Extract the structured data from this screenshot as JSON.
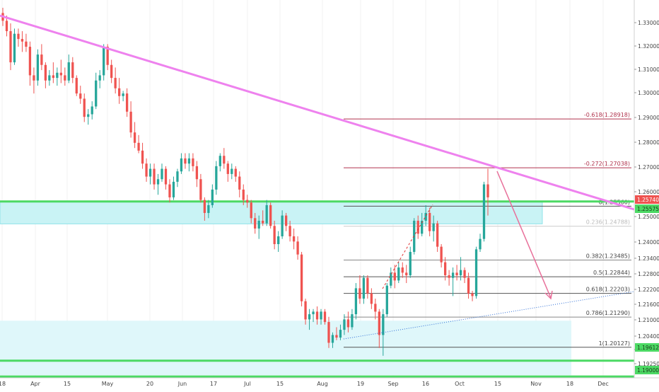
{
  "chart_data": {
    "type": "candlestick",
    "title": "",
    "timeframe": "daily",
    "x_axis_ticks": [
      "18",
      "Apr",
      "15",
      "May",
      "20",
      "Jun",
      "17",
      "Jul",
      "15",
      "Aug",
      "19",
      "Sep",
      "16",
      "Oct",
      "15",
      "Nov",
      "18",
      "Dec"
    ],
    "y_axis_ticks": [
      "1.33000",
      "1.32000",
      "1.31000",
      "1.30000",
      "1.29000",
      "1.28000",
      "1.27000",
      "1.26000",
      "1.25000",
      "1.24000",
      "1.23400",
      "1.22800",
      "1.22200",
      "1.21600",
      "1.21000",
      "1.20400",
      "1.19750",
      "1.19250"
    ],
    "ylim": [
      1.1895,
      1.335
    ],
    "price_labels": {
      "current": {
        "text": "1.25740",
        "value": 1.2574,
        "color": "#ef5350"
      },
      "zone_upper": {
        "text": "1.25575",
        "value": 1.25575,
        "color": "#4cd964"
      },
      "support_1": {
        "text": "1.19612",
        "value": 1.19612,
        "color": "#4cd964"
      },
      "support_2": {
        "text": "1.19000",
        "value": 1.19,
        "color": "#4cd964"
      }
    },
    "fib_levels": [
      {
        "label": "-0.618(1.28918)",
        "value": 1.28918,
        "color": "#b0334d"
      },
      {
        "label": "-0.272(1.27038)",
        "value": 1.27038,
        "color": "#b0334d"
      },
      {
        "label": "0(1.25560)",
        "value": 1.2556,
        "color": "#555555"
      },
      {
        "label": "0.236(1.24788)",
        "value": 1.24788,
        "color": "#cccccc"
      },
      {
        "label": "0.382(1.23485)",
        "value": 1.23485,
        "color": "#888888"
      },
      {
        "label": "0.5(1.22844)",
        "value": 1.22844,
        "color": "#555555"
      },
      {
        "label": "0.618(1.22203)",
        "value": 1.22203,
        "color": "#555555"
      },
      {
        "label": "0.786(1.21290)",
        "value": 1.2129,
        "color": "#888888"
      },
      {
        "label": "1(1.20127)",
        "value": 1.20127,
        "color": "#555555"
      }
    ],
    "zones": [
      {
        "name": "resistance-zone",
        "top": 1.2574,
        "bottom": 1.2488,
        "color": "#c9f3f5"
      },
      {
        "name": "support-zone",
        "top": 1.2115,
        "bottom": 1.1905,
        "color": "#dff7fa"
      }
    ],
    "horizontal_lines": [
      {
        "value": 1.2574,
        "color": "#4cd964"
      },
      {
        "value": 1.19612,
        "color": "#4cd964"
      },
      {
        "value": 1.19,
        "color": "#4cd964"
      }
    ],
    "trendline_color": "#ee82ee",
    "projection_arrow_color": "#e8709a",
    "series": [
      {
        "o": 1.33,
        "h": 1.332,
        "l": 1.325,
        "c": 1.327
      },
      {
        "o": 1.327,
        "h": 1.329,
        "l": 1.321,
        "c": 1.323
      },
      {
        "o": 1.323,
        "h": 1.326,
        "l": 1.308,
        "c": 1.311
      },
      {
        "o": 1.311,
        "h": 1.324,
        "l": 1.31,
        "c": 1.322
      },
      {
        "o": 1.322,
        "h": 1.324,
        "l": 1.317,
        "c": 1.32
      },
      {
        "o": 1.32,
        "h": 1.323,
        "l": 1.315,
        "c": 1.319
      },
      {
        "o": 1.319,
        "h": 1.322,
        "l": 1.315,
        "c": 1.317
      },
      {
        "o": 1.317,
        "h": 1.319,
        "l": 1.302,
        "c": 1.306
      },
      {
        "o": 1.306,
        "h": 1.309,
        "l": 1.299,
        "c": 1.304
      },
      {
        "o": 1.304,
        "h": 1.316,
        "l": 1.302,
        "c": 1.314
      },
      {
        "o": 1.314,
        "h": 1.318,
        "l": 1.308,
        "c": 1.31
      },
      {
        "o": 1.31,
        "h": 1.311,
        "l": 1.301,
        "c": 1.304
      },
      {
        "o": 1.304,
        "h": 1.308,
        "l": 1.302,
        "c": 1.306
      },
      {
        "o": 1.306,
        "h": 1.311,
        "l": 1.303,
        "c": 1.305
      },
      {
        "o": 1.305,
        "h": 1.309,
        "l": 1.302,
        "c": 1.307
      },
      {
        "o": 1.307,
        "h": 1.312,
        "l": 1.303,
        "c": 1.306
      },
      {
        "o": 1.306,
        "h": 1.309,
        "l": 1.302,
        "c": 1.304
      },
      {
        "o": 1.304,
        "h": 1.314,
        "l": 1.303,
        "c": 1.311
      },
      {
        "o": 1.311,
        "h": 1.313,
        "l": 1.303,
        "c": 1.305
      },
      {
        "o": 1.305,
        "h": 1.306,
        "l": 1.298,
        "c": 1.299
      },
      {
        "o": 1.299,
        "h": 1.302,
        "l": 1.295,
        "c": 1.297
      },
      {
        "o": 1.297,
        "h": 1.299,
        "l": 1.288,
        "c": 1.29
      },
      {
        "o": 1.29,
        "h": 1.293,
        "l": 1.287,
        "c": 1.291
      },
      {
        "o": 1.291,
        "h": 1.296,
        "l": 1.289,
        "c": 1.294
      },
      {
        "o": 1.294,
        "h": 1.307,
        "l": 1.293,
        "c": 1.304
      },
      {
        "o": 1.304,
        "h": 1.308,
        "l": 1.301,
        "c": 1.306
      },
      {
        "o": 1.306,
        "h": 1.318,
        "l": 1.304,
        "c": 1.317
      },
      {
        "o": 1.317,
        "h": 1.318,
        "l": 1.308,
        "c": 1.31
      },
      {
        "o": 1.31,
        "h": 1.312,
        "l": 1.303,
        "c": 1.305
      },
      {
        "o": 1.305,
        "h": 1.309,
        "l": 1.299,
        "c": 1.301
      },
      {
        "o": 1.301,
        "h": 1.305,
        "l": 1.295,
        "c": 1.298
      },
      {
        "o": 1.298,
        "h": 1.3,
        "l": 1.296,
        "c": 1.299
      },
      {
        "o": 1.299,
        "h": 1.301,
        "l": 1.29,
        "c": 1.292
      },
      {
        "o": 1.292,
        "h": 1.296,
        "l": 1.282,
        "c": 1.284
      },
      {
        "o": 1.284,
        "h": 1.288,
        "l": 1.278,
        "c": 1.28
      },
      {
        "o": 1.28,
        "h": 1.283,
        "l": 1.276,
        "c": 1.277
      },
      {
        "o": 1.277,
        "h": 1.28,
        "l": 1.27,
        "c": 1.272
      },
      {
        "o": 1.272,
        "h": 1.274,
        "l": 1.265,
        "c": 1.267
      },
      {
        "o": 1.267,
        "h": 1.272,
        "l": 1.264,
        "c": 1.27
      },
      {
        "o": 1.27,
        "h": 1.272,
        "l": 1.262,
        "c": 1.264
      },
      {
        "o": 1.264,
        "h": 1.268,
        "l": 1.26,
        "c": 1.266
      },
      {
        "o": 1.266,
        "h": 1.272,
        "l": 1.265,
        "c": 1.27
      },
      {
        "o": 1.27,
        "h": 1.271,
        "l": 1.262,
        "c": 1.264
      },
      {
        "o": 1.264,
        "h": 1.266,
        "l": 1.257,
        "c": 1.259
      },
      {
        "o": 1.259,
        "h": 1.267,
        "l": 1.258,
        "c": 1.265
      },
      {
        "o": 1.265,
        "h": 1.27,
        "l": 1.263,
        "c": 1.269
      },
      {
        "o": 1.269,
        "h": 1.276,
        "l": 1.268,
        "c": 1.274
      },
      {
        "o": 1.274,
        "h": 1.276,
        "l": 1.27,
        "c": 1.272
      },
      {
        "o": 1.272,
        "h": 1.276,
        "l": 1.269,
        "c": 1.274
      },
      {
        "o": 1.274,
        "h": 1.276,
        "l": 1.269,
        "c": 1.271
      },
      {
        "o": 1.271,
        "h": 1.273,
        "l": 1.263,
        "c": 1.266
      },
      {
        "o": 1.266,
        "h": 1.268,
        "l": 1.257,
        "c": 1.258
      },
      {
        "o": 1.258,
        "h": 1.259,
        "l": 1.25,
        "c": 1.253
      },
      {
        "o": 1.253,
        "h": 1.258,
        "l": 1.251,
        "c": 1.256
      },
      {
        "o": 1.256,
        "h": 1.264,
        "l": 1.255,
        "c": 1.262
      },
      {
        "o": 1.262,
        "h": 1.273,
        "l": 1.26,
        "c": 1.271
      },
      {
        "o": 1.271,
        "h": 1.276,
        "l": 1.269,
        "c": 1.275
      },
      {
        "o": 1.275,
        "h": 1.278,
        "l": 1.27,
        "c": 1.272
      },
      {
        "o": 1.272,
        "h": 1.273,
        "l": 1.265,
        "c": 1.268
      },
      {
        "o": 1.268,
        "h": 1.272,
        "l": 1.266,
        "c": 1.27
      },
      {
        "o": 1.27,
        "h": 1.271,
        "l": 1.265,
        "c": 1.267
      },
      {
        "o": 1.267,
        "h": 1.269,
        "l": 1.259,
        "c": 1.262
      },
      {
        "o": 1.262,
        "h": 1.264,
        "l": 1.256,
        "c": 1.258
      },
      {
        "o": 1.258,
        "h": 1.26,
        "l": 1.255,
        "c": 1.257
      },
      {
        "o": 1.257,
        "h": 1.258,
        "l": 1.249,
        "c": 1.251
      },
      {
        "o": 1.251,
        "h": 1.253,
        "l": 1.245,
        "c": 1.247
      },
      {
        "o": 1.247,
        "h": 1.252,
        "l": 1.243,
        "c": 1.25
      },
      {
        "o": 1.25,
        "h": 1.254,
        "l": 1.248,
        "c": 1.249
      },
      {
        "o": 1.249,
        "h": 1.258,
        "l": 1.248,
        "c": 1.256
      },
      {
        "o": 1.256,
        "h": 1.257,
        "l": 1.247,
        "c": 1.248
      },
      {
        "o": 1.248,
        "h": 1.25,
        "l": 1.239,
        "c": 1.241
      },
      {
        "o": 1.241,
        "h": 1.246,
        "l": 1.238,
        "c": 1.244
      },
      {
        "o": 1.244,
        "h": 1.254,
        "l": 1.243,
        "c": 1.252
      },
      {
        "o": 1.252,
        "h": 1.253,
        "l": 1.246,
        "c": 1.248
      },
      {
        "o": 1.248,
        "h": 1.25,
        "l": 1.242,
        "c": 1.244
      },
      {
        "o": 1.244,
        "h": 1.247,
        "l": 1.239,
        "c": 1.242
      },
      {
        "o": 1.242,
        "h": 1.244,
        "l": 1.235,
        "c": 1.237
      },
      {
        "o": 1.237,
        "h": 1.238,
        "l": 1.217,
        "c": 1.219
      },
      {
        "o": 1.219,
        "h": 1.22,
        "l": 1.21,
        "c": 1.212
      },
      {
        "o": 1.212,
        "h": 1.216,
        "l": 1.208,
        "c": 1.214
      },
      {
        "o": 1.214,
        "h": 1.216,
        "l": 1.211,
        "c": 1.215
      },
      {
        "o": 1.215,
        "h": 1.217,
        "l": 1.21,
        "c": 1.212
      },
      {
        "o": 1.212,
        "h": 1.216,
        "l": 1.21,
        "c": 1.215
      },
      {
        "o": 1.215,
        "h": 1.216,
        "l": 1.21,
        "c": 1.211
      },
      {
        "o": 1.211,
        "h": 1.213,
        "l": 1.201,
        "c": 1.203
      },
      {
        "o": 1.203,
        "h": 1.207,
        "l": 1.201,
        "c": 1.206
      },
      {
        "o": 1.206,
        "h": 1.209,
        "l": 1.204,
        "c": 1.205
      },
      {
        "o": 1.205,
        "h": 1.21,
        "l": 1.204,
        "c": 1.208
      },
      {
        "o": 1.208,
        "h": 1.214,
        "l": 1.206,
        "c": 1.212
      },
      {
        "o": 1.212,
        "h": 1.215,
        "l": 1.207,
        "c": 1.209
      },
      {
        "o": 1.209,
        "h": 1.216,
        "l": 1.208,
        "c": 1.214
      },
      {
        "o": 1.214,
        "h": 1.226,
        "l": 1.212,
        "c": 1.224
      },
      {
        "o": 1.224,
        "h": 1.229,
        "l": 1.218,
        "c": 1.22
      },
      {
        "o": 1.22,
        "h": 1.229,
        "l": 1.218,
        "c": 1.228
      },
      {
        "o": 1.228,
        "h": 1.229,
        "l": 1.22,
        "c": 1.222
      },
      {
        "o": 1.222,
        "h": 1.224,
        "l": 1.216,
        "c": 1.218
      },
      {
        "o": 1.218,
        "h": 1.22,
        "l": 1.212,
        "c": 1.215
      },
      {
        "o": 1.215,
        "h": 1.216,
        "l": 1.201,
        "c": 1.206
      },
      {
        "o": 1.206,
        "h": 1.216,
        "l": 1.198,
        "c": 1.214
      },
      {
        "o": 1.214,
        "h": 1.226,
        "l": 1.213,
        "c": 1.225
      },
      {
        "o": 1.225,
        "h": 1.232,
        "l": 1.224,
        "c": 1.23
      },
      {
        "o": 1.23,
        "h": 1.233,
        "l": 1.224,
        "c": 1.227
      },
      {
        "o": 1.227,
        "h": 1.234,
        "l": 1.226,
        "c": 1.232
      },
      {
        "o": 1.232,
        "h": 1.234,
        "l": 1.228,
        "c": 1.23
      },
      {
        "o": 1.23,
        "h": 1.233,
        "l": 1.226,
        "c": 1.229
      },
      {
        "o": 1.229,
        "h": 1.24,
        "l": 1.228,
        "c": 1.238
      },
      {
        "o": 1.238,
        "h": 1.251,
        "l": 1.237,
        "c": 1.25
      },
      {
        "o": 1.25,
        "h": 1.252,
        "l": 1.243,
        "c": 1.245
      },
      {
        "o": 1.245,
        "h": 1.253,
        "l": 1.244,
        "c": 1.25
      },
      {
        "o": 1.25,
        "h": 1.256,
        "l": 1.248,
        "c": 1.253
      },
      {
        "o": 1.253,
        "h": 1.255,
        "l": 1.244,
        "c": 1.246
      },
      {
        "o": 1.246,
        "h": 1.252,
        "l": 1.242,
        "c": 1.249
      },
      {
        "o": 1.249,
        "h": 1.25,
        "l": 1.238,
        "c": 1.24
      },
      {
        "o": 1.24,
        "h": 1.241,
        "l": 1.232,
        "c": 1.234
      },
      {
        "o": 1.234,
        "h": 1.236,
        "l": 1.227,
        "c": 1.229
      },
      {
        "o": 1.229,
        "h": 1.231,
        "l": 1.225,
        "c": 1.228
      },
      {
        "o": 1.228,
        "h": 1.232,
        "l": 1.221,
        "c": 1.23
      },
      {
        "o": 1.23,
        "h": 1.233,
        "l": 1.227,
        "c": 1.229
      },
      {
        "o": 1.229,
        "h": 1.236,
        "l": 1.227,
        "c": 1.231
      },
      {
        "o": 1.231,
        "h": 1.232,
        "l": 1.226,
        "c": 1.228
      },
      {
        "o": 1.228,
        "h": 1.23,
        "l": 1.22,
        "c": 1.222
      },
      {
        "o": 1.222,
        "h": 1.223,
        "l": 1.219,
        "c": 1.221
      },
      {
        "o": 1.221,
        "h": 1.24,
        "l": 1.22,
        "c": 1.239
      },
      {
        "o": 1.239,
        "h": 1.245,
        "l": 1.238,
        "c": 1.243
      },
      {
        "o": 1.243,
        "h": 1.265,
        "l": 1.242,
        "c": 1.264
      },
      {
        "o": 1.264,
        "h": 1.27,
        "l": 1.252,
        "c": 1.259
      }
    ]
  }
}
